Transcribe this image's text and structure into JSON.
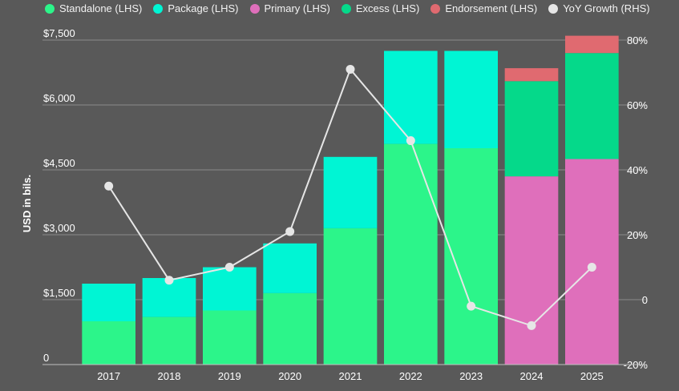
{
  "legend": [
    {
      "label": "Standalone (LHS)",
      "color": "#2cf58a"
    },
    {
      "label": "Package (LHS)",
      "color": "#00f5d4"
    },
    {
      "label": "Primary (LHS)",
      "color": "#df6fbb"
    },
    {
      "label": "Excess (LHS)",
      "color": "#05d98a"
    },
    {
      "label": "Endorsement (LHS)",
      "color": "#e06a70"
    },
    {
      "label": "YoY Growth (RHS)",
      "color": "#e6e6e6"
    }
  ],
  "chart_data": {
    "type": "bar",
    "stacked": true,
    "categories": [
      "2017",
      "2018",
      "2019",
      "2020",
      "2021",
      "2022",
      "2023",
      "2024",
      "2025"
    ],
    "ylabel": "USD in bils.",
    "ylim": [
      0,
      7500
    ],
    "y_ticks": [
      0,
      1500,
      3000,
      4500,
      6000,
      7500
    ],
    "y_tick_labels": [
      "0",
      "$1,500",
      "$3,000",
      "$4,500",
      "$6,000",
      "$7,500"
    ],
    "y2lim": [
      -20,
      80
    ],
    "y2_ticks": [
      -20,
      0,
      20,
      40,
      60,
      80
    ],
    "y2_tick_labels": [
      "-20%",
      "0",
      "20%",
      "40%",
      "60%",
      "80%"
    ],
    "series": [
      {
        "name": "Standalone (LHS)",
        "color": "#2cf58a",
        "values": [
          1000,
          1100,
          1250,
          1650,
          3150,
          5100,
          5000,
          0,
          0
        ]
      },
      {
        "name": "Package (LHS)",
        "color": "#00f5d4",
        "values": [
          870,
          900,
          1000,
          1150,
          1650,
          2150,
          2250,
          0,
          0
        ]
      },
      {
        "name": "Primary (LHS)",
        "color": "#df6fbb",
        "values": [
          0,
          0,
          0,
          0,
          0,
          0,
          0,
          4350,
          4750
        ]
      },
      {
        "name": "Excess (LHS)",
        "color": "#05d98a",
        "values": [
          0,
          0,
          0,
          0,
          0,
          0,
          0,
          2200,
          2450
        ]
      },
      {
        "name": "Endorsement (LHS)",
        "color": "#e06a70",
        "values": [
          0,
          0,
          0,
          0,
          0,
          0,
          0,
          300,
          400
        ]
      }
    ],
    "line": {
      "name": "YoY Growth (RHS)",
      "color": "#e6e6e6",
      "axis": "right",
      "values": [
        35,
        6,
        10,
        21,
        71,
        49,
        -2,
        -8,
        10
      ]
    }
  }
}
